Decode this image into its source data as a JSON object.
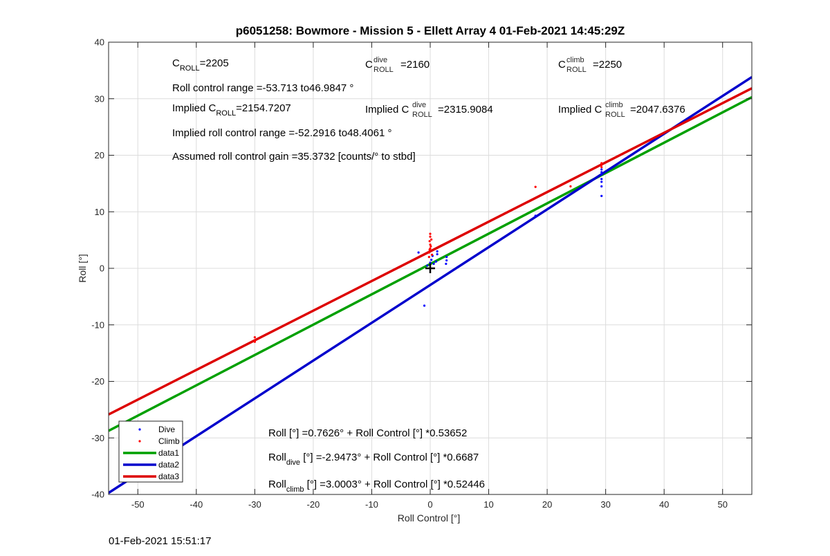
{
  "chart_data": {
    "type": "scatter",
    "title": "p6051258: Bowmore - Mission 5 - Ellett Array 4 01-Feb-2021 14:45:29Z",
    "xlabel": "Roll Control [°]",
    "ylabel": "Roll [°]",
    "xlim": [
      -55,
      55
    ],
    "ylim": [
      -40,
      40
    ],
    "xticks": [
      "-50",
      "-40",
      "-30",
      "-20",
      "-10",
      "0",
      "10",
      "20",
      "30",
      "40",
      "50"
    ],
    "yticks": [
      "-40",
      "-30",
      "-20",
      "-10",
      "0",
      "10",
      "20",
      "30",
      "40"
    ],
    "grid": true,
    "legend_position": "bottom-left",
    "legend": [
      "Dive",
      "Climb",
      "data1",
      "data2",
      "data3"
    ],
    "series": [
      {
        "name": "Dive",
        "kind": "points",
        "color": "#0000ff",
        "points": [
          [
            -2,
            2.8
          ],
          [
            -1,
            -6.6
          ],
          [
            -0.5,
            0.5
          ],
          [
            0,
            1.0
          ],
          [
            0.2,
            1.5
          ],
          [
            0.4,
            2.2
          ],
          [
            0.6,
            0.8
          ],
          [
            1,
            1.2
          ],
          [
            1.2,
            2.5
          ],
          [
            1.2,
            3.0
          ],
          [
            2.7,
            0.8
          ],
          [
            2.8,
            1.4
          ],
          [
            2.8,
            2.0
          ],
          [
            18,
            9.3
          ],
          [
            29.3,
            12.8
          ],
          [
            29.3,
            14.5
          ],
          [
            29.3,
            15.3
          ],
          [
            29.3,
            15.8
          ],
          [
            29.3,
            16.6
          ],
          [
            29.3,
            17.0
          ],
          [
            29.3,
            17.5
          ]
        ]
      },
      {
        "name": "Climb",
        "kind": "points",
        "color": "#ff0000",
        "points": [
          [
            -30,
            -12.2
          ],
          [
            -30,
            -12.8
          ],
          [
            -30,
            -13.0
          ],
          [
            -0.2,
            2.8
          ],
          [
            -0.1,
            3.3
          ],
          [
            0,
            3.5
          ],
          [
            0.1,
            3.9
          ],
          [
            0,
            4.2
          ],
          [
            -0.1,
            4.8
          ],
          [
            0.2,
            5.1
          ],
          [
            0,
            5.6
          ],
          [
            0,
            6.1
          ],
          [
            0.3,
            2.4
          ],
          [
            -0.2,
            2.0
          ],
          [
            18,
            14.4
          ],
          [
            24,
            14.5
          ],
          [
            29.3,
            17.9
          ],
          [
            29.3,
            18.3
          ],
          [
            29.3,
            18.6
          ]
        ]
      },
      {
        "name": "data1",
        "kind": "line",
        "color": "#00a000",
        "intercept": 0.7626,
        "slope": 0.53652
      },
      {
        "name": "data2",
        "kind": "line",
        "color": "#0000cc",
        "intercept": -2.9473,
        "slope": 0.6687
      },
      {
        "name": "data3",
        "kind": "line",
        "color": "#dd0000",
        "intercept": 3.0003,
        "slope": 0.52446
      }
    ],
    "marker_point": [
      0,
      0
    ],
    "annotations": {
      "croll": {
        "prefix": "C",
        "sub": "ROLL",
        "value": "=2205"
      },
      "croll_dive": {
        "prefix": "C",
        "sup": "dive",
        "sub": "ROLL",
        "value": "=2160"
      },
      "croll_climb": {
        "prefix": "C",
        "sup": "climb",
        "sub": "ROLL",
        "value": "=2250"
      },
      "range": "Roll control range =-53.713 to46.9847 °",
      "implied": {
        "prefix": "Implied C",
        "sub": "ROLL",
        "value": "=2154.7207"
      },
      "implied_dive": {
        "prefix": "Implied C",
        "sup": "dive",
        "sub": "ROLL",
        "value": "=2315.9084"
      },
      "implied_climb": {
        "prefix": "Implied C",
        "sup": "climb",
        "sub": "ROLL",
        "value": "=2047.6376"
      },
      "implied_range": "Implied roll control range =-52.2916 to48.4061 °",
      "gain": "Assumed roll control gain =35.3732 [counts/° to stbd]",
      "fit_all": "Roll [°] =0.7626° + Roll Control [°] *0.53652",
      "fit_dive": {
        "prefix": "Roll",
        "sub": "dive",
        "rest": " [°] =-2.9473° + Roll Control [°] *0.6687"
      },
      "fit_climb": {
        "prefix": "Roll",
        "sub": "climb",
        "rest": " [°] =3.0003° + Roll Control [°] *0.52446"
      }
    },
    "timestamp": "01-Feb-2021 15:51:17"
  }
}
